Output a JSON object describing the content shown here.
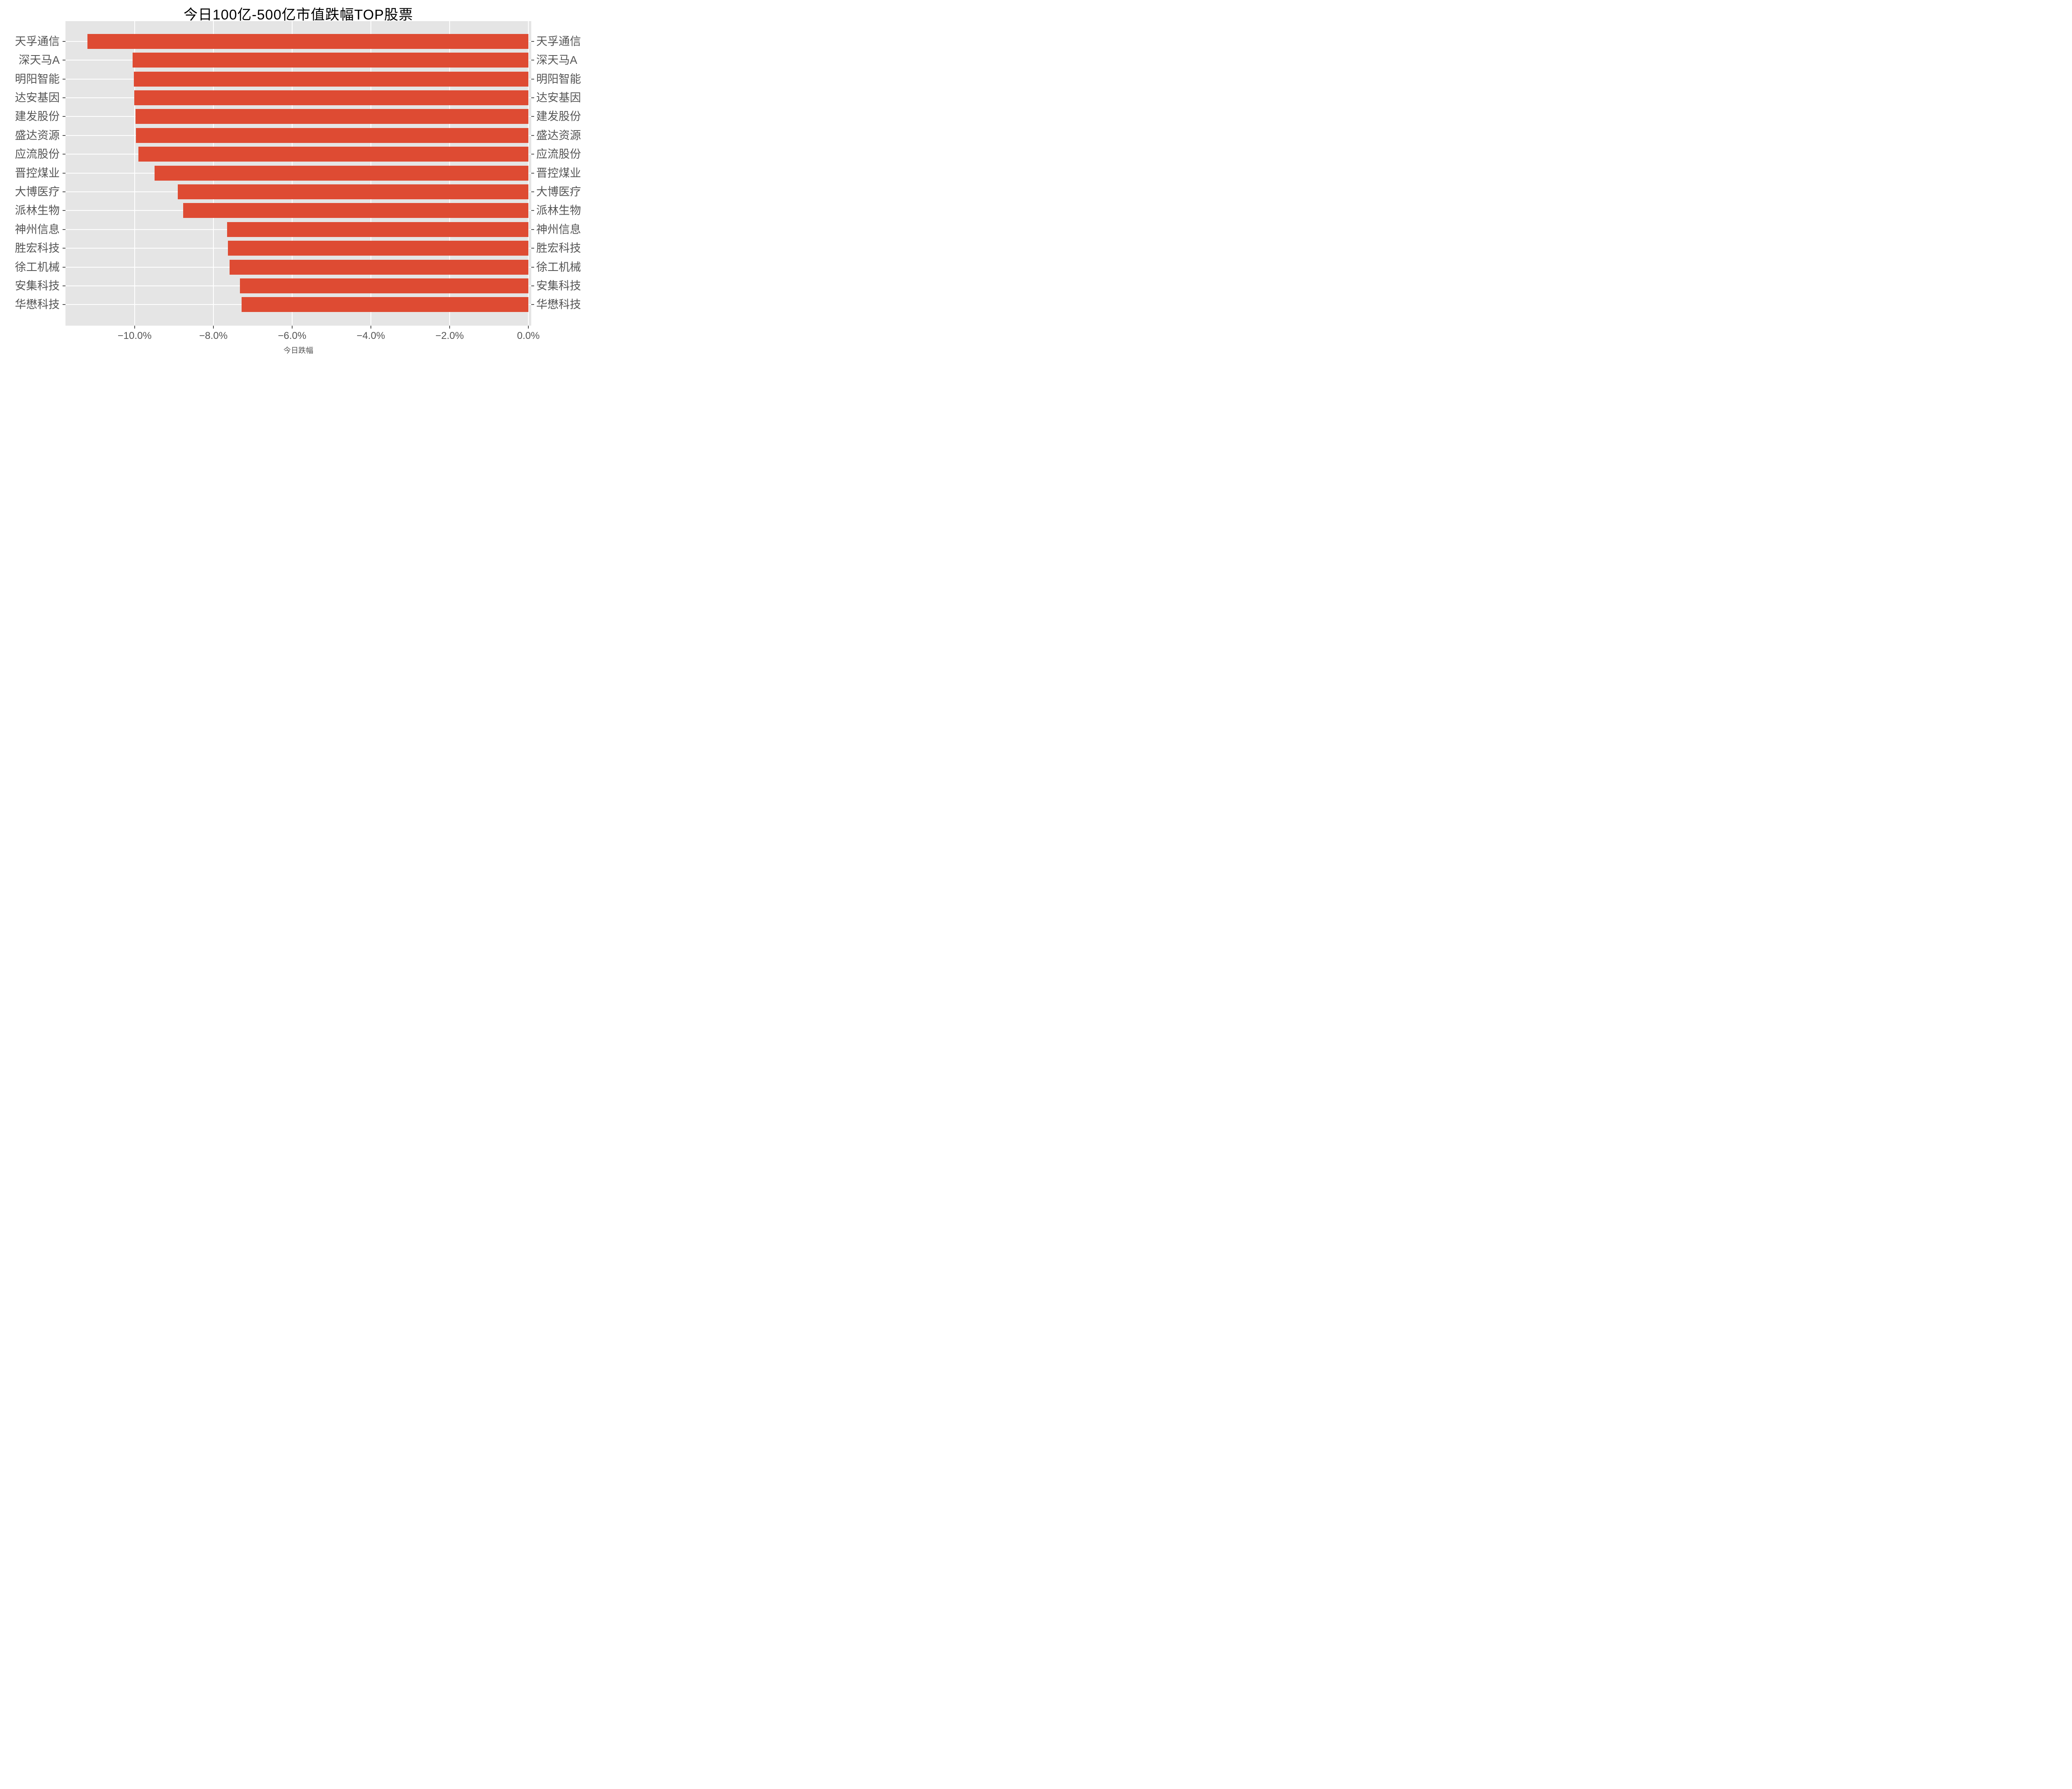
{
  "chart_data": {
    "type": "bar",
    "orientation": "horizontal",
    "title": "今日100亿-500亿市值跌幅TOP股票",
    "xlabel": "今日跌幅",
    "ylabel": "",
    "categories": [
      "天孚通信",
      "深天马A",
      "明阳智能",
      "达安基因",
      "建发股份",
      "盛达资源",
      "应流股份",
      "晋控煤业",
      "大博医疗",
      "派林生物",
      "神州信息",
      "胜宏科技",
      "徐工机械",
      "安集科技",
      "华懋科技"
    ],
    "values": [
      -11.2,
      -10.05,
      -10.02,
      -10.01,
      -9.98,
      -9.97,
      -9.9,
      -9.49,
      -8.9,
      -8.77,
      -7.65,
      -7.63,
      -7.59,
      -7.33,
      -7.28
    ],
    "value_unit": "percent",
    "x_ticks": {
      "values": [
        -10,
        -8,
        -6,
        -4,
        -2,
        0
      ],
      "labels": [
        "−10.0%",
        "−8.0%",
        "−6.0%",
        "−4.0%",
        "−2.0%",
        "0.0%"
      ]
    },
    "xlim": [
      -11.76,
      0.07
    ],
    "grid": true,
    "legend": null,
    "mirrored_y_labels": true,
    "bar_fraction": 0.8,
    "colors": {
      "bar": "#DE4B33",
      "plot_background": "#E5E5E5",
      "gridline": "#FFFFFF",
      "tick_label": "#555555",
      "axis_label": "#555555",
      "title": "#000000",
      "figure_background": "#FFFFFF"
    }
  }
}
